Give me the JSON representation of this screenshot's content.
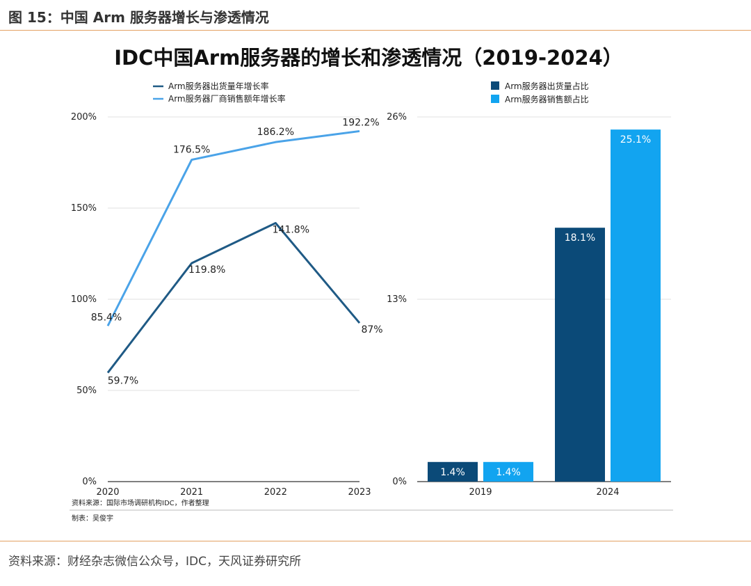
{
  "figure_title": "图 15：中国 Arm 服务器增长与渗透情况",
  "footer_source": "资料来源：财经杂志微信公众号，IDC，天风证券研究所",
  "inner_title": "IDC中国Arm服务器的增长和渗透情况（2019-2024）",
  "inner_source": "资料来源：国际市场调研机构IDC，作者整理",
  "inner_maker": "制表：吴俊宇",
  "colors": {
    "dark": "#1f5a85",
    "light": "#4aa3e8",
    "bar_dark": "#0b4a78",
    "bar_light": "#12a4f0"
  },
  "chart_data": [
    {
      "type": "line",
      "x": [
        "2020",
        "2021",
        "2022",
        "2023"
      ],
      "ylim": [
        0,
        200
      ],
      "yticks": [
        "0%",
        "50%",
        "100%",
        "150%",
        "200%"
      ],
      "grid": true,
      "legend_position": "top-left",
      "series": [
        {
          "name": "Arm服务器出货量年增长率",
          "values": [
            59.7,
            119.8,
            141.8,
            87
          ],
          "labels": [
            "59.7%",
            "119.8%",
            "141.8%",
            "87%"
          ]
        },
        {
          "name": "Arm服务器厂商销售额年增长率",
          "values": [
            85.4,
            176.5,
            186.2,
            192.2
          ],
          "labels": [
            "85.4%",
            "176.5%",
            "186.2%",
            "192.2%"
          ]
        }
      ]
    },
    {
      "type": "bar",
      "categories": [
        "2019",
        "2024"
      ],
      "ylim": [
        0,
        26
      ],
      "yticks": [
        "0%",
        "13%",
        "26%"
      ],
      "grid": true,
      "legend_position": "top-right",
      "series": [
        {
          "name": "Arm服务器出货量占比",
          "values": [
            1.4,
            18.1
          ],
          "labels": [
            "1.4%",
            "18.1%"
          ]
        },
        {
          "name": "Arm服务器销售额占比",
          "values": [
            1.4,
            25.1
          ],
          "labels": [
            "1.4%",
            "25.1%"
          ]
        }
      ]
    }
  ]
}
